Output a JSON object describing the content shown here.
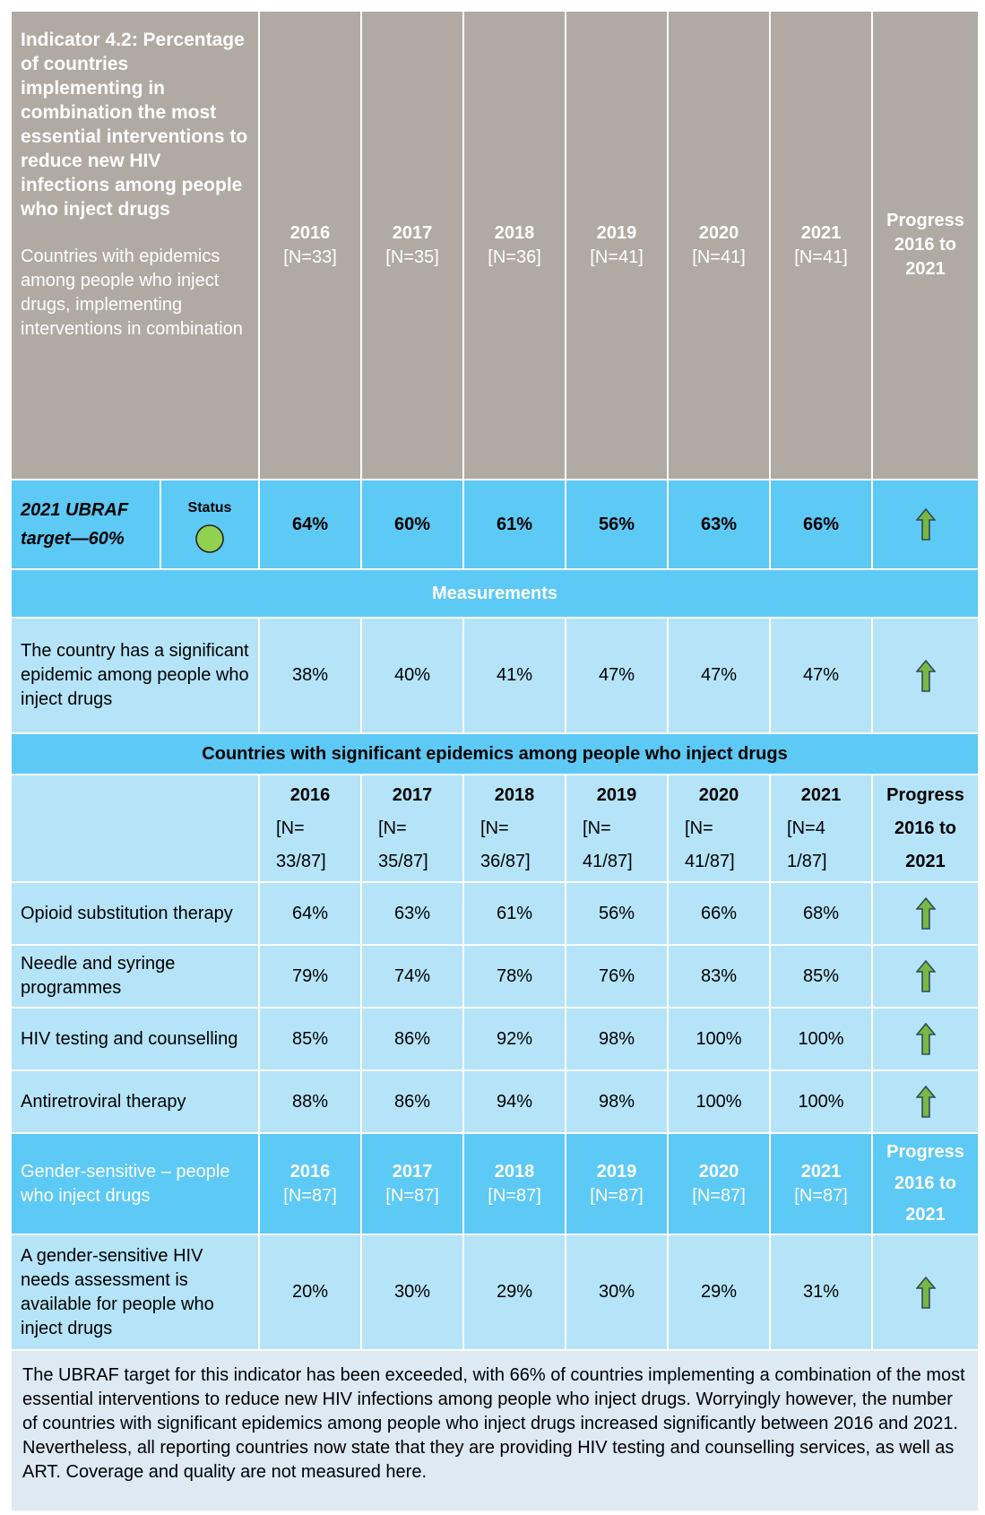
{
  "header": {
    "title": "Indicator 4.2: Percentage of countries implementing in combination the most essential interventions to reduce new HIV infections among people who inject drugs",
    "subtitle": "Countries with epidemics among people who inject drugs, implementing interventions in combination",
    "columns": [
      {
        "year": "2016",
        "n": "[N=33]"
      },
      {
        "year": "2017",
        "n": "[N=35]"
      },
      {
        "year": "2018",
        "n": "[N=36]"
      },
      {
        "year": "2019",
        "n": "[N=41]"
      },
      {
        "year": "2020",
        "n": "[N=41]"
      },
      {
        "year": "2021",
        "n": "[N=41]"
      }
    ],
    "progress": "Progress 2016 to 2021"
  },
  "target": {
    "label": "2021 UBRAF target—60%",
    "status": "Status",
    "values": [
      "64%",
      "60%",
      "61%",
      "56%",
      "63%",
      "66%"
    ]
  },
  "measurements_heading": "Measurements",
  "measurement": {
    "label": "The country has a significant epidemic among people who inject drugs",
    "values": [
      "38%",
      "40%",
      "41%",
      "47%",
      "47%",
      "47%"
    ]
  },
  "section": {
    "title": "Countries with significant epidemics among people who inject drugs",
    "columns": [
      {
        "year": "2016",
        "n": "[N= 33/87]"
      },
      {
        "year": "2017",
        "n": "[N= 35/87]"
      },
      {
        "year": "2018",
        "n": "[N= 36/87]"
      },
      {
        "year": "2019",
        "n": "[N= 41/87]"
      },
      {
        "year": "2020",
        "n": "[N= 41/87]"
      },
      {
        "year": "2021",
        "n": "[N=4 1/87]"
      }
    ],
    "progress": "Progress 2016 to 2021",
    "rows": [
      {
        "label": "Opioid substitution therapy",
        "values": [
          "64%",
          "63%",
          "61%",
          "56%",
          "66%",
          "68%"
        ]
      },
      {
        "label": "Needle and syringe programmes",
        "values": [
          "79%",
          "74%",
          "78%",
          "76%",
          "83%",
          "85%"
        ]
      },
      {
        "label": "HIV testing and counselling",
        "values": [
          "85%",
          "86%",
          "92%",
          "98%",
          "100%",
          "100%"
        ]
      },
      {
        "label": "Antiretroviral therapy",
        "values": [
          "88%",
          "86%",
          "94%",
          "98%",
          "100%",
          "100%"
        ]
      }
    ]
  },
  "gender": {
    "title": "Gender-sensitive – people who inject drugs",
    "columns": [
      {
        "year": "2016",
        "n": "[N=87]"
      },
      {
        "year": "2017",
        "n": "[N=87]"
      },
      {
        "year": "2018",
        "n": "[N=87]"
      },
      {
        "year": "2019",
        "n": "[N=87]"
      },
      {
        "year": "2020",
        "n": "[N=87]"
      },
      {
        "year": "2021",
        "n": "[N=87]"
      }
    ],
    "progress": "Progress 2016 to 2021",
    "rows": [
      {
        "label": "A gender-sensitive HIV needs assessment is available for people who inject drugs",
        "values": [
          "20%",
          "30%",
          "29%",
          "30%",
          "29%",
          "31%"
        ]
      }
    ]
  },
  "footer": "The UBRAF target for this indicator has been exceeded, with 66% of countries implementing a combination of the most essential interventions to reduce new HIV infections among people who inject drugs. Worryingly however, the number of countries with significant epidemics among people who inject drugs increased significantly between 2016 and 2021. Nevertheless, all reporting countries now state that they are providing HIV testing and counselling services, as well as ART. Coverage and quality are not measured here."
}
